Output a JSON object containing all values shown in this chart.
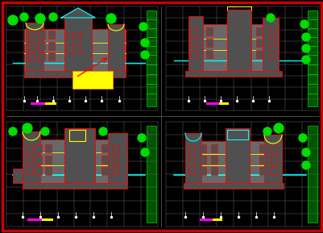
{
  "background_color": "#000000",
  "border_color": "#cc0000",
  "border_linewidth": 2.0,
  "fig_width": 4.02,
  "fig_height": 2.89,
  "dpi": 100,
  "colors": {
    "red": "#ff0000",
    "cyan": "#00ffff",
    "yellow": "#ffff00",
    "green": "#00ff00",
    "bright_green": "#00dd00",
    "white": "#ffffff",
    "gray": "#808080",
    "dark_gray": "#505050",
    "mid_gray": "#686868",
    "magenta": "#ff00ff",
    "orange": "#ff8800",
    "grid": "#666666",
    "dim_line": "#aaaaaa"
  }
}
